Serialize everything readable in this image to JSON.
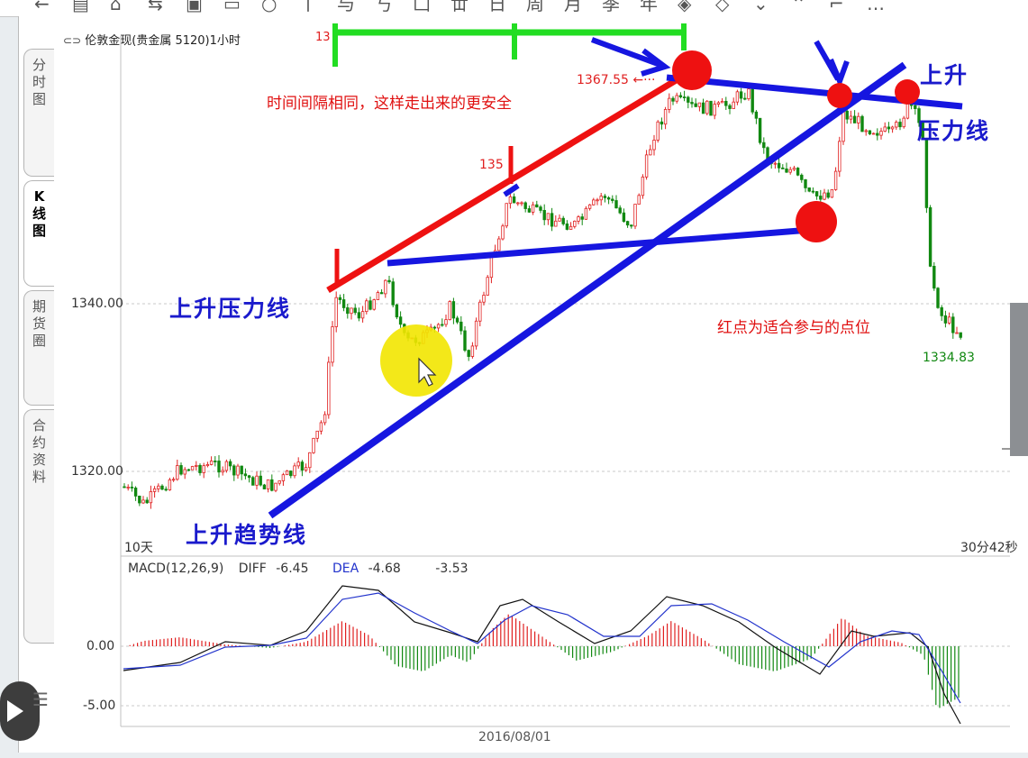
{
  "toolbar": {
    "buttons": [
      "←",
      "▤",
      "⌂",
      "⇆",
      "▣",
      "▭",
      "○",
      "丨",
      "与",
      "丂",
      "凵",
      "丗",
      "日",
      "周",
      "月",
      "季",
      "年",
      "◈",
      "◇",
      "⌄",
      "⌃",
      "⌐",
      "…"
    ]
  },
  "chart": {
    "title": "伦敦金现(贵金属 5120)1小时",
    "price_axis": {
      "labels": [
        "1340.00",
        "1320.00"
      ]
    },
    "macd_axis": {
      "labels": [
        "0.00",
        "-5.00"
      ]
    },
    "period_label": "10天",
    "countdown_label": "30分42秒",
    "date_label": "2016/08/01",
    "high_marker": "1367.55",
    "last_price": "1334.83",
    "partial_label": "135",
    "partial_top_label": "13"
  },
  "macd": {
    "name": "MACD(12,26,9)",
    "diff_label": "DIFF",
    "diff_value": "-6.45",
    "dea_label": "DEA",
    "dea_value": "-4.68",
    "macd_value": "-3.53"
  },
  "side_tabs": [
    {
      "label": "分时图",
      "active": false
    },
    {
      "label": "K线图",
      "active": true
    },
    {
      "label": "期货圈",
      "active": false
    },
    {
      "label": "合约资料",
      "active": false
    }
  ],
  "annotations": {
    "rising_pressure_line_left": "上升压力线",
    "rising_trend_line": "上升趋势线",
    "rising_top_right": "上升",
    "pressure_line_right": "压力线",
    "equal_interval_note": "时间间隔相同，这样走出来的更安全",
    "red_dot_note": "红点为适合参与的点位"
  },
  "colors": {
    "up": "#e02020",
    "down": "#118811",
    "annotation_blue": "#1616e0",
    "annotation_red": "#ee1111",
    "annotation_green": "#22dd22",
    "highlight_yellow": "#f2e600"
  }
}
